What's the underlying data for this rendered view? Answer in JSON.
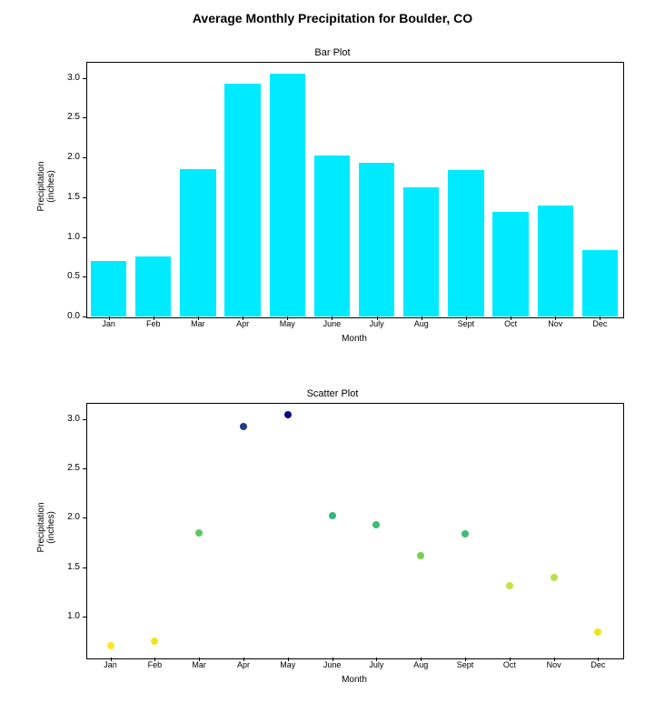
{
  "suptitle": "Average Monthly Precipitation for Boulder, CO",
  "bar_chart": {
    "type": "bar",
    "title": "Bar Plot",
    "xlabel": "Month",
    "ylabel": "Precipitation\n(inches)",
    "categories": [
      "Jan",
      "Feb",
      "Mar",
      "Apr",
      "May",
      "June",
      "July",
      "Aug",
      "Sept",
      "Oct",
      "Nov",
      "Dec"
    ],
    "values": [
      0.7,
      0.75,
      1.85,
      2.93,
      3.05,
      2.02,
      1.93,
      1.62,
      1.84,
      1.31,
      1.39,
      0.84
    ],
    "bar_color": "#00eaff",
    "ylim": [
      0,
      3.2
    ],
    "yticks": [
      0.0,
      0.5,
      1.0,
      1.5,
      2.0,
      2.5,
      3.0
    ],
    "bar_width": 0.8,
    "title_fontsize": 11,
    "label_fontsize": 10,
    "tick_fontsize": 10,
    "background_color": "#ffffff",
    "border_color": "#000000"
  },
  "scatter_chart": {
    "type": "scatter",
    "title": "Scatter Plot",
    "xlabel": "Month",
    "ylabel": "Precipitation\n(inches)",
    "categories": [
      "Jan",
      "Feb",
      "Mar",
      "Apr",
      "May",
      "June",
      "July",
      "Aug",
      "Sept",
      "Oct",
      "Nov",
      "Dec"
    ],
    "values": [
      0.7,
      0.75,
      1.85,
      2.93,
      3.05,
      2.02,
      1.93,
      1.62,
      1.84,
      1.31,
      1.39,
      0.84
    ],
    "point_colors": [
      "#fde725",
      "#f3e61e",
      "#5cc863",
      "#1f3e8a",
      "#0d0887",
      "#35b779",
      "#40bc72",
      "#75d054",
      "#3dbc74",
      "#c2e34d",
      "#b8e050",
      "#ece51b"
    ],
    "cmap": "YlGnBu",
    "ylim": [
      0.58,
      3.17
    ],
    "yticks": [
      1.0,
      1.5,
      2.0,
      2.5,
      3.0
    ],
    "marker_size": 8,
    "title_fontsize": 11,
    "label_fontsize": 10,
    "tick_fontsize": 10,
    "background_color": "#ffffff",
    "border_color": "#000000"
  },
  "suptitle_fontsize": 14,
  "suptitle_fontweight": "bold",
  "figure_width": 732,
  "figure_height": 784
}
